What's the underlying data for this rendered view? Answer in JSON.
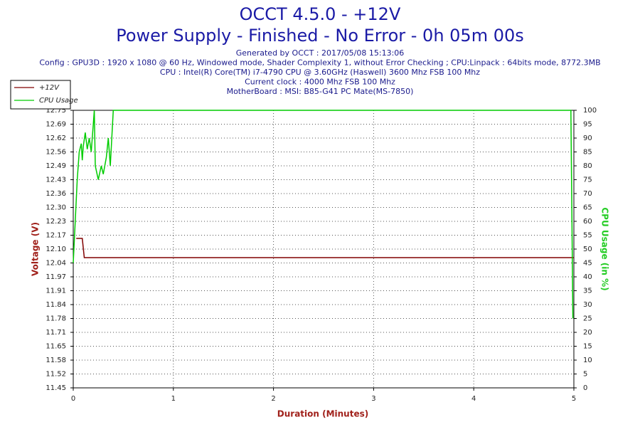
{
  "chart_data": {
    "type": "line",
    "title": "OCCT 4.5.0 - +12V",
    "subtitle": "Power Supply - Finished - No Error - 0h 05m 00s",
    "info": [
      "Generated by OCCT : 2017/05/08 15:13:06",
      "Config : GPU3D : 1920 x 1080 @ 60 Hz, Windowed mode, Shader Complexity 1, without Error Checking ; CPU:Linpack : 64bits mode, 8772.3MB",
      "CPU : Intel(R) Core(TM) i7-4790 CPU @ 3.60GHz (Haswell) 3600 Mhz FSB 100 Mhz",
      "Current clock : 4000 Mhz FSB 100 Mhz",
      "MotherBoard : MSI: B85-G41 PC Mate(MS-7850)"
    ],
    "x_label": "Duration (Minutes)",
    "y_label": "Voltage (V)",
    "y2_label": "CPU Usage (in %)",
    "xlim": [
      0,
      5
    ],
    "xticks": [
      0,
      1,
      2,
      3,
      4,
      5
    ],
    "ylim": [
      11.45,
      12.75
    ],
    "yticks": [
      11.45,
      {
        "value": 11.515,
        "label": "11.52"
      },
      11.58,
      {
        "value": 11.645,
        "label": "11.65"
      },
      11.71,
      {
        "value": 11.775,
        "label": "11.78"
      },
      11.84,
      {
        "value": 11.905,
        "label": "11.91"
      },
      11.97,
      {
        "value": 12.035,
        "label": "12.04"
      },
      {
        "value": 12.1,
        "label": "12.10"
      },
      {
        "value": 12.165,
        "label": "12.17"
      },
      12.23,
      {
        "value": 12.295,
        "label": "12.30"
      },
      12.36,
      {
        "value": 12.425,
        "label": "12.43"
      },
      12.49,
      {
        "value": 12.555,
        "label": "12.56"
      },
      12.62,
      {
        "value": 12.685,
        "label": "12.69"
      },
      12.75
    ],
    "y2lim": [
      0,
      100
    ],
    "y2ticks": [
      0,
      5,
      10,
      15,
      20,
      25,
      30,
      35,
      40,
      45,
      50,
      55,
      60,
      65,
      70,
      75,
      80,
      85,
      90,
      95,
      100
    ],
    "grid": true,
    "legend": "top-left",
    "series": [
      {
        "name": "+12V",
        "color": "#800000",
        "axis": "y",
        "x": [
          0.03,
          0.09,
          0.11,
          5
        ],
        "values": [
          12.15,
          12.15,
          12.06,
          12.06
        ]
      },
      {
        "name": "CPU Usage",
        "color": "#00cc00",
        "axis": "y2",
        "x": [
          0,
          0.02,
          0.04,
          0.06,
          0.08,
          0.09,
          0.1,
          0.12,
          0.14,
          0.16,
          0.18,
          0.2,
          0.21,
          0.22,
          0.25,
          0.28,
          0.3,
          0.33,
          0.35,
          0.37,
          0.4,
          4.97,
          4.99
        ],
        "values": [
          45,
          60,
          75,
          85,
          88,
          82,
          87,
          92,
          86,
          90,
          85,
          95,
          100,
          80,
          75,
          80,
          77,
          83,
          90,
          80,
          100,
          100,
          25
        ]
      }
    ]
  }
}
